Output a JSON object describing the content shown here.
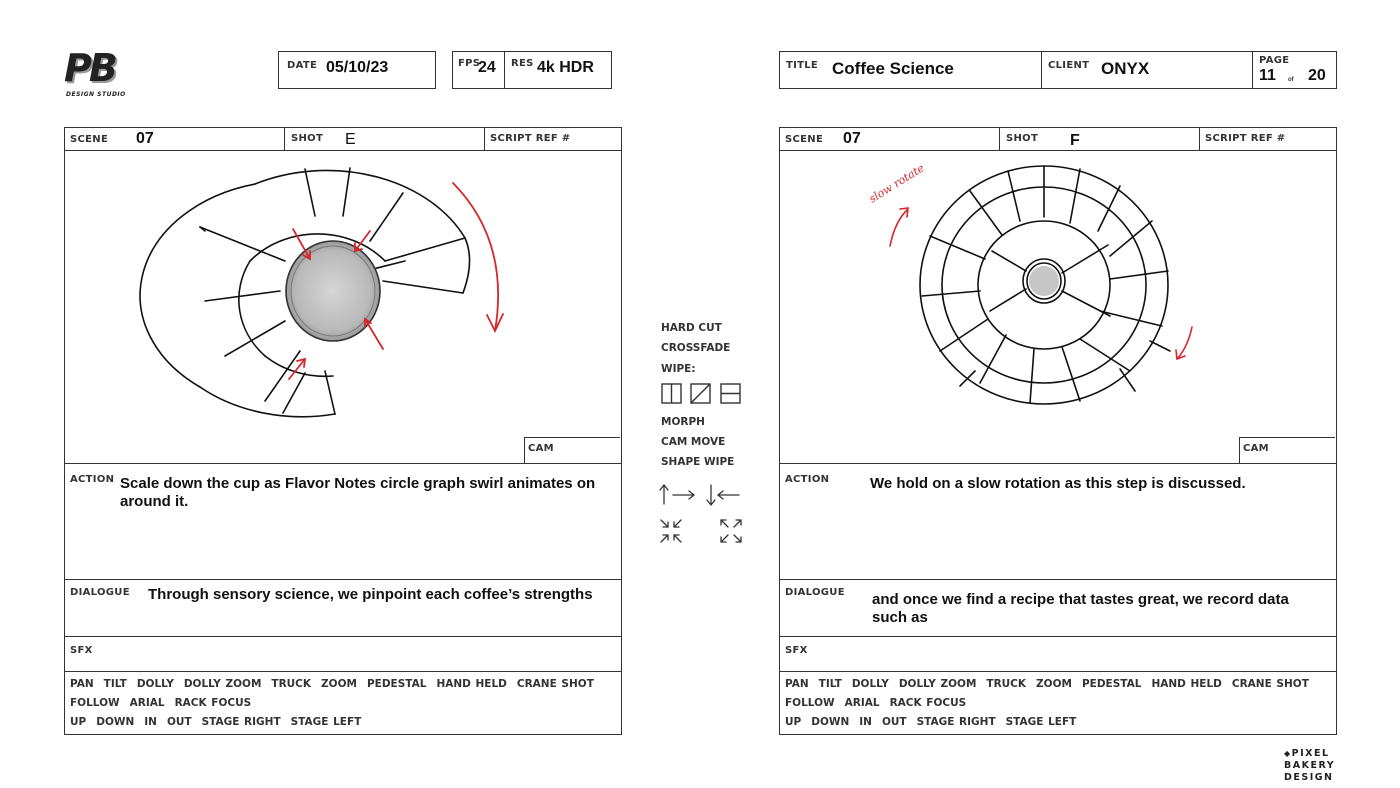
{
  "logo": {
    "letters": "PB",
    "subtitle": "DESIGN STUDIO"
  },
  "header": {
    "date_label": "DATE",
    "date": "05/10/23",
    "fps_label": "FPS",
    "fps": "24",
    "res_label": "RES",
    "res": "4k HDR",
    "title_label": "TITLE",
    "title": "Coffee Science",
    "client_label": "CLIENT",
    "client": "ONYX",
    "page_label": "PAGE",
    "page": "11",
    "page_of": "of",
    "page_total": "20"
  },
  "labels": {
    "scene": "SCENE",
    "shot": "SHOT",
    "script_ref": "SCRIPT REF #",
    "cam": "CAM",
    "action": "ACTION",
    "dialogue": "DIALOGUE",
    "sfx": "SFX"
  },
  "camera_moves": {
    "row1": [
      "PAN",
      "TILT",
      "DOLLY",
      "DOLLY ZOOM",
      "TRUCK",
      "ZOOM",
      "PEDESTAL",
      "HAND HELD",
      "CRANE SHOT"
    ],
    "row2": [
      "FOLLOW",
      "ARIAL",
      "RACK FOCUS"
    ],
    "row3": [
      "UP",
      "DOWN",
      "IN",
      "OUT",
      "STAGE RIGHT",
      "STAGE LEFT"
    ]
  },
  "panels": [
    {
      "scene": "07",
      "shot": "E",
      "action": "Scale down the cup as Flavor Notes circle graph swirl animates on around it.",
      "dialogue": "Through sensory science, we pinpoint each coffee’s strengths"
    },
    {
      "scene": "07",
      "shot": "F",
      "action": "We hold on a slow rotation as this step is discussed.",
      "dialogue": "and once we find a recipe that tastes great, we record data such as",
      "annotation": "slow rotate"
    }
  ],
  "transitions": {
    "hard_cut": "HARD CUT",
    "crossfade": "CROSSFADE",
    "wipe": "WIPE:",
    "morph": "MORPH",
    "cam_move": "CAM MOVE",
    "shape_wipe": "SHAPE WIPE"
  },
  "footer_logo": {
    "line1": "PIXEL",
    "line2": "BAKERY",
    "line3": "DESIGN"
  },
  "colors": {
    "ink": "#111111",
    "border": "#333333",
    "annotation": "#d8262b"
  }
}
